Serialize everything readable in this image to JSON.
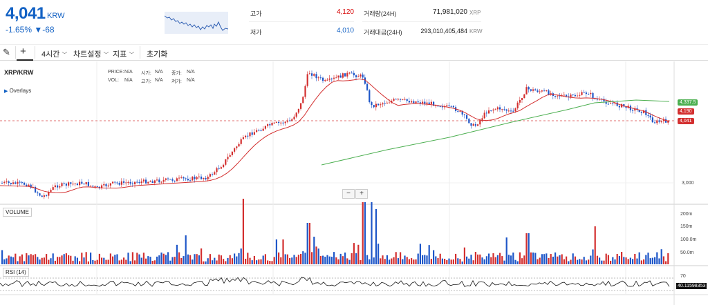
{
  "ticker": {
    "price": "4,041",
    "currency": "KRW",
    "change_pct": "-1.65%",
    "change_abs": "▼-68",
    "down_color": "#1261c4",
    "up_color": "#d60000"
  },
  "stats": {
    "high_label": "고가",
    "high_value": "4,120",
    "low_label": "저가",
    "low_value": "4,010",
    "volume_label": "거래량(24H)",
    "volume_value": "71,981,020",
    "volume_unit": "XRP",
    "amount_label": "거래대금(24H)",
    "amount_value": "293,010,405,484",
    "amount_unit": "KRW"
  },
  "toolbar": {
    "interval": "4시간",
    "chart_settings": "차트설정",
    "indicators": "지표",
    "reset": "초기화"
  },
  "chart": {
    "symbol": "XRP/KRW",
    "overlays": "Overlays",
    "info": [
      {
        "label": "PRICE:",
        "value": "N/A"
      },
      {
        "label": "시가:",
        "value": "N/A"
      },
      {
        "label": "종가:",
        "value": "N/A"
      },
      {
        "label": "VOL:",
        "value": "N/A"
      },
      {
        "label": "고가:",
        "value": "N/A"
      },
      {
        "label": "저가:",
        "value": "N/A"
      }
    ],
    "price_axis_label": "3,000",
    "tags": [
      {
        "text": "4,337.5",
        "color": "#4caf50"
      },
      {
        "text": "4,190",
        "color": "#d32f2f"
      },
      {
        "text": "4,041",
        "color": "#d32f2f"
      }
    ],
    "zoom_out": "−",
    "zoom_in": "+",
    "volume_label": "VOLUME",
    "volume_axis": [
      "200m",
      "150m",
      "100.0m",
      "50.0m"
    ],
    "rsi_label": "RSI (14)",
    "rsi_axis": "70",
    "rsi_value": "40.11598353"
  }
}
